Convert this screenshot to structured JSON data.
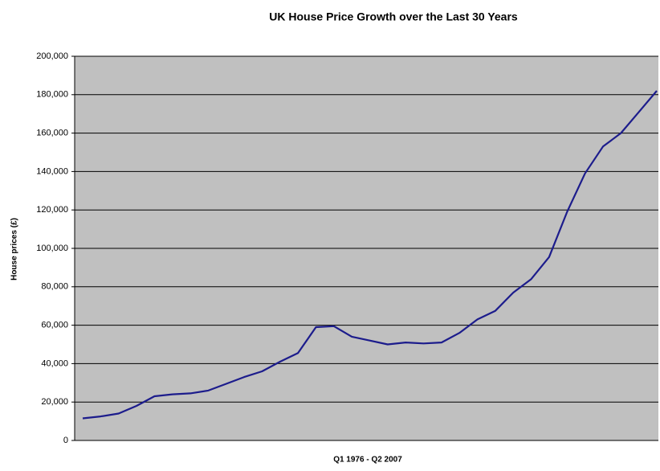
{
  "chart_data": {
    "type": "line",
    "title": "UK House Price Growth over the Last 30 Years",
    "x_label": "Q1 1976 - Q2 2007",
    "y_label": "House prices (£)",
    "values": [
      11500,
      12500,
      14000,
      18000,
      23000,
      24000,
      24500,
      26000,
      29500,
      33000,
      36000,
      41000,
      45500,
      59000,
      59500,
      54000,
      52000,
      50000,
      51000,
      50500,
      51000,
      56000,
      63000,
      67500,
      77000,
      84000,
      95500,
      119000,
      139000,
      153000,
      160000,
      171000,
      182000
    ],
    "color": "#1c1c8c",
    "background": "#c0c0c0",
    "grid": true,
    "ylim": [
      0,
      200000
    ],
    "yticks": [
      0,
      {
        "value": 20000,
        "label": "20,000"
      },
      {
        "value": 40000,
        "label": "40,000"
      },
      {
        "value": 60000,
        "label": "60,000"
      },
      {
        "value": 80000,
        "label": "80,000"
      },
      {
        "value": 100000,
        "label": "100,000"
      },
      {
        "value": 120000,
        "label": "120,000"
      },
      {
        "value": 140000,
        "label": "140,000"
      },
      {
        "value": 160000,
        "label": "160,000"
      },
      {
        "value": 180000,
        "label": "180,000"
      },
      {
        "value": 200000,
        "label": "200,000"
      }
    ]
  }
}
